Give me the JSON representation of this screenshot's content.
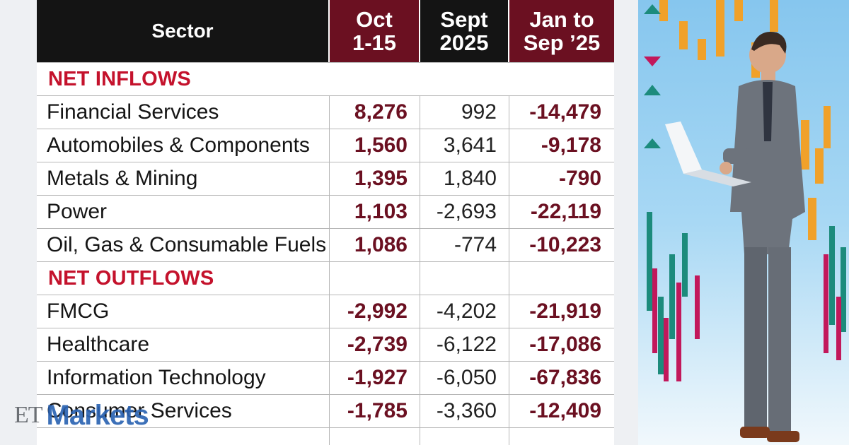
{
  "header": {
    "sector": "Sector",
    "oct": [
      "Oct",
      "1-15"
    ],
    "sept": [
      "Sept",
      "2025"
    ],
    "jan": [
      "Jan to",
      "Sep ’25"
    ]
  },
  "sections": [
    {
      "label": "NET INFLOWS",
      "rows": [
        {
          "sector": "Financial Services",
          "oct": "8,276",
          "sept": "992",
          "jan": "-14,479"
        },
        {
          "sector": "Automobiles & Components",
          "oct": "1,560",
          "sept": "3,641",
          "jan": "-9,178"
        },
        {
          "sector": "Metals & Mining",
          "oct": "1,395",
          "sept": "1,840",
          "jan": "-790"
        },
        {
          "sector": "Power",
          "oct": "1,103",
          "sept": "-2,693",
          "jan": "-22,119"
        },
        {
          "sector": "Oil, Gas & Consumable Fuels",
          "oct": "1,086",
          "sept": "-774",
          "jan": "-10,223"
        }
      ]
    },
    {
      "label": "NET OUTFLOWS",
      "rows": [
        {
          "sector": "FMCG",
          "oct": "-2,992",
          "sept": "-4,202",
          "jan": "-21,919"
        },
        {
          "sector": "Healthcare",
          "oct": "-2,739",
          "sept": "-6,122",
          "jan": "-17,086"
        },
        {
          "sector": "Information Technology",
          "oct": "-1,927",
          "sept": "-6,050",
          "jan": "-67,836"
        },
        {
          "sector": "Consumer Services",
          "oct": "-1,785",
          "sept": "-3,360",
          "jan": "-12,409"
        }
      ]
    }
  ],
  "logo": {
    "et": "ET",
    "markets": "Markets"
  },
  "colors": {
    "accent_maroon": "#6b1021",
    "section_red": "#c4122c",
    "header_black": "#141414"
  },
  "chart_data": {
    "type": "table",
    "columns": [
      "Sector",
      "Oct 1-15",
      "Sept 2025",
      "Jan to Sep ’25"
    ],
    "groups": [
      {
        "name": "NET INFLOWS",
        "rows": [
          [
            "Financial Services",
            8276,
            992,
            -14479
          ],
          [
            "Automobiles & Components",
            1560,
            3641,
            -9178
          ],
          [
            "Metals & Mining",
            1395,
            1840,
            -790
          ],
          [
            "Power",
            1103,
            -2693,
            -22119
          ],
          [
            "Oil, Gas & Consumable Fuels",
            1086,
            -774,
            -10223
          ]
        ]
      },
      {
        "name": "NET OUTFLOWS",
        "rows": [
          [
            "FMCG",
            -2992,
            -4202,
            -21919
          ],
          [
            "Healthcare",
            -2739,
            -6122,
            -17086
          ],
          [
            "Information Technology",
            -1927,
            -6050,
            -67836
          ],
          [
            "Consumer Services",
            -1785,
            -3360,
            -12409
          ]
        ]
      }
    ]
  }
}
